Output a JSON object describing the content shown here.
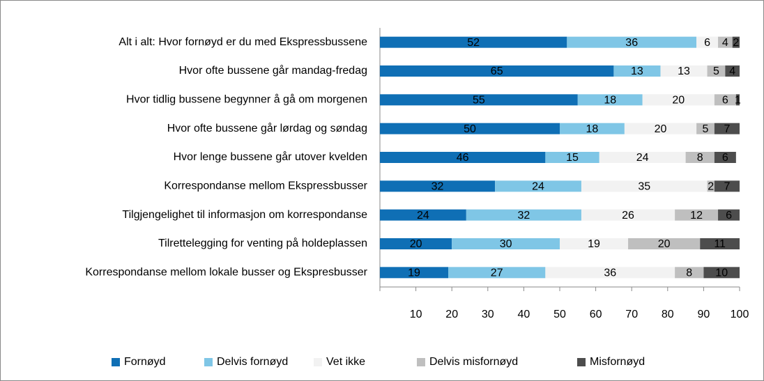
{
  "chart_data": {
    "type": "stacked-bar-horizontal",
    "categories": [
      "Alt i alt: Hvor fornøyd er du med Ekspressbussene",
      "Hvor ofte bussene går mandag-fredag",
      "Hvor tidlig bussene begynner å gå om morgenen",
      "Hvor ofte bussene går lørdag og søndag",
      "Hvor lenge bussene går utover kvelden",
      "Korrespondanse mellom Ekspressbusser",
      "Tilgjengelighet til informasjon om korrespondanse",
      "Tilrettelegging for venting på holdeplassen",
      "Korrespondanse mellom lokale busser og Ekspresbusser"
    ],
    "series": [
      {
        "name": "Fornøyd",
        "color": "#0f6fb5",
        "values": [
          52,
          65,
          55,
          50,
          46,
          32,
          24,
          20,
          19
        ]
      },
      {
        "name": "Delvis fornøyd",
        "color": "#7fc6e6",
        "values": [
          36,
          13,
          18,
          18,
          15,
          24,
          32,
          30,
          27
        ]
      },
      {
        "name": "Vet ikke",
        "color": "#f2f2f2",
        "values": [
          6,
          13,
          20,
          20,
          24,
          35,
          26,
          19,
          36
        ]
      },
      {
        "name": "Delvis misfornøyd",
        "color": "#bfbfbf",
        "values": [
          4,
          5,
          6,
          5,
          8,
          2,
          12,
          20,
          8
        ]
      },
      {
        "name": "Misfornøyd",
        "color": "#4d4d4d",
        "values": [
          2,
          4,
          1,
          7,
          6,
          7,
          6,
          11,
          10
        ]
      }
    ],
    "xlim": [
      0,
      100
    ],
    "xticks": [
      10,
      20,
      30,
      40,
      50,
      60,
      70,
      80,
      90,
      100
    ]
  }
}
